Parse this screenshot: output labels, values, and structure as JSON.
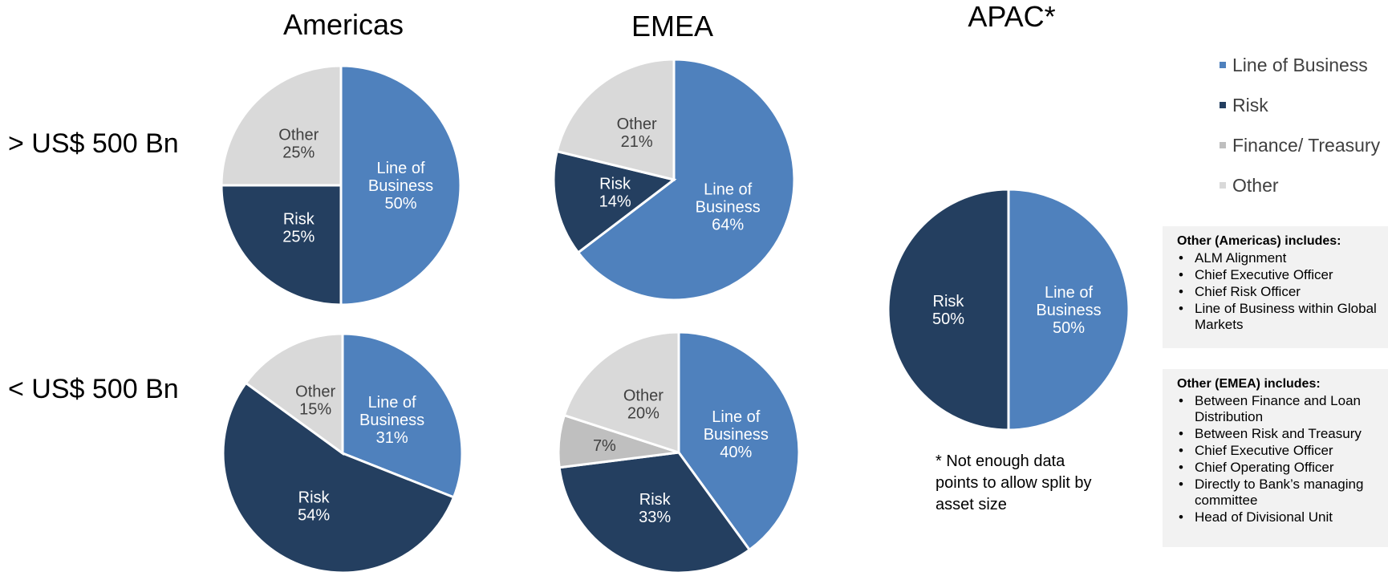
{
  "column_titles": [
    "Americas",
    "EMEA",
    "APAC*"
  ],
  "row_labels": [
    "> US$ 500 Bn",
    "< US$ 500 Bn"
  ],
  "colors": {
    "line_of_business": "#4f81bd",
    "risk": "#243f60",
    "finance_treasury": "#bfbfbf",
    "other": "#d9d9d9"
  },
  "legend": [
    {
      "label": "Line of Business",
      "color": "#4f81bd"
    },
    {
      "label": "Risk",
      "color": "#243f60"
    },
    {
      "label": "Finance/ Treasury",
      "color": "#bfbfbf"
    },
    {
      "label": "Other",
      "color": "#d9d9d9"
    }
  ],
  "chart_data": [
    {
      "type": "pie",
      "region": "Americas",
      "segment": "> US$ 500 Bn",
      "slices": [
        {
          "name": "Line of Business",
          "value": 50,
          "label_lines": [
            "Line of",
            "Business",
            "50%"
          ]
        },
        {
          "name": "Risk",
          "value": 25,
          "label_lines": [
            "Risk",
            "25%"
          ]
        },
        {
          "name": "Other",
          "value": 25,
          "label_lines": [
            "Other",
            "25%"
          ]
        }
      ]
    },
    {
      "type": "pie",
      "region": "EMEA",
      "segment": "> US$ 500 Bn",
      "slices": [
        {
          "name": "Line of Business",
          "value": 64,
          "label_lines": [
            "Line of",
            "Business",
            "64%"
          ]
        },
        {
          "name": "Risk",
          "value": 14,
          "label_lines": [
            "Risk",
            "14%"
          ]
        },
        {
          "name": "Other",
          "value": 21,
          "label_lines": [
            "Other",
            "21%"
          ]
        }
      ]
    },
    {
      "type": "pie",
      "region": "Americas",
      "segment": "< US$ 500 Bn",
      "slices": [
        {
          "name": "Line of Business",
          "value": 31,
          "label_lines": [
            "Line of",
            "Business",
            "31%"
          ]
        },
        {
          "name": "Risk",
          "value": 54,
          "label_lines": [
            "Risk",
            "54%"
          ]
        },
        {
          "name": "Other",
          "value": 15,
          "label_lines": [
            "Other",
            "15%"
          ]
        }
      ]
    },
    {
      "type": "pie",
      "region": "EMEA",
      "segment": "< US$ 500 Bn",
      "slices": [
        {
          "name": "Line of Business",
          "value": 40,
          "label_lines": [
            "Line of",
            "Business",
            "40%"
          ]
        },
        {
          "name": "Risk",
          "value": 33,
          "label_lines": [
            "Risk",
            "33%"
          ]
        },
        {
          "name": "Finance/ Treasury",
          "value": 7,
          "label_lines": [
            "7%"
          ]
        },
        {
          "name": "Other",
          "value": 20,
          "label_lines": [
            "Other",
            "20%"
          ]
        }
      ]
    },
    {
      "type": "pie",
      "region": "APAC*",
      "segment": "all",
      "slices": [
        {
          "name": "Line of Business",
          "value": 50,
          "label_lines": [
            "Line of",
            "Business",
            "50%"
          ]
        },
        {
          "name": "Risk",
          "value": 50,
          "label_lines": [
            "Risk",
            "50%"
          ]
        }
      ]
    }
  ],
  "notes": [
    {
      "title": "Other (Americas) includes:",
      "items": [
        "ALM Alignment",
        "Chief Executive Officer",
        "Chief Risk Officer",
        "Line of Business within Global Markets"
      ]
    },
    {
      "title": "Other (EMEA) includes:",
      "items": [
        "Between Finance and Loan Distribution",
        "Between Risk and Treasury",
        "Chief Executive Officer",
        "Chief Operating Officer",
        "Directly to Bank’s managing committee",
        "Head of Divisional Unit"
      ]
    }
  ],
  "footnote": "* Not enough data points to allow split by asset size"
}
